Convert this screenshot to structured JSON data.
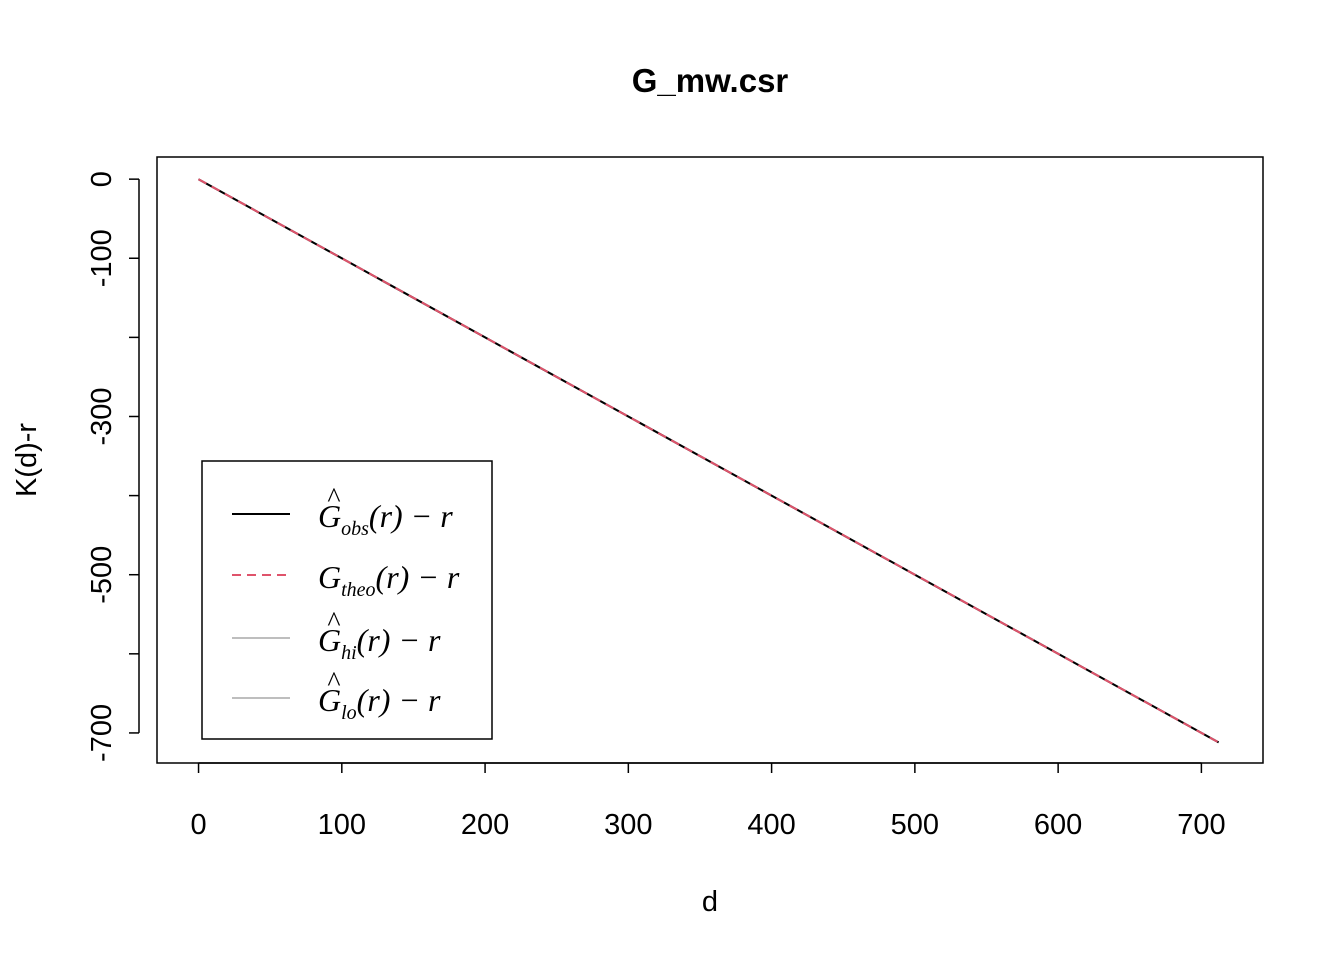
{
  "chart_data": {
    "type": "line",
    "title": "G_mw.csr",
    "xlabel": "d",
    "ylabel": "K(d)-r",
    "xlim": [
      -29,
      743
    ],
    "ylim": [
      -738,
      28
    ],
    "x_ticks": [
      0,
      100,
      200,
      300,
      400,
      500,
      600,
      700
    ],
    "y_ticks": [
      0,
      -100,
      -300,
      -500,
      -700
    ],
    "y_minor_ticks": [
      -200,
      -400,
      -600
    ],
    "grid": false,
    "legend_position": "bottom-left",
    "series": [
      {
        "key": "obs",
        "legend": {
          "base": "G",
          "hat": "^",
          "sub": "obs",
          "rest": "(r) − r"
        },
        "color": "#000000",
        "dash": "solid",
        "x": [
          0,
          100,
          200,
          300,
          400,
          500,
          600,
          712
        ],
        "y": [
          0,
          -100,
          -200,
          -300,
          -400,
          -500,
          -600,
          -712
        ]
      },
      {
        "key": "theo",
        "legend": {
          "base": "G",
          "hat": "",
          "sub": "theo",
          "rest": "(r) − r"
        },
        "color": "#DF536B",
        "dash": "dashed",
        "x": [
          0,
          100,
          200,
          300,
          400,
          500,
          600,
          712
        ],
        "y": [
          0,
          -100,
          -200,
          -300,
          -400,
          -500,
          -600,
          -712
        ]
      },
      {
        "key": "hi",
        "legend": {
          "base": "G",
          "hat": "^",
          "sub": "hi",
          "rest": "(r) − r"
        },
        "color": "#BEBEBE",
        "dash": "solid",
        "x": [
          0,
          100,
          200,
          300,
          400,
          500,
          600,
          712
        ],
        "y": [
          0,
          -100,
          -200,
          -300,
          -400,
          -500,
          -600,
          -712
        ]
      },
      {
        "key": "lo",
        "legend": {
          "base": "G",
          "hat": "^",
          "sub": "lo",
          "rest": "(r) − r"
        },
        "color": "#BEBEBE",
        "dash": "solid",
        "x": [
          0,
          100,
          200,
          300,
          400,
          500,
          600,
          712
        ],
        "y": [
          0,
          -100,
          -200,
          -300,
          -400,
          -500,
          -600,
          -712
        ]
      }
    ]
  }
}
